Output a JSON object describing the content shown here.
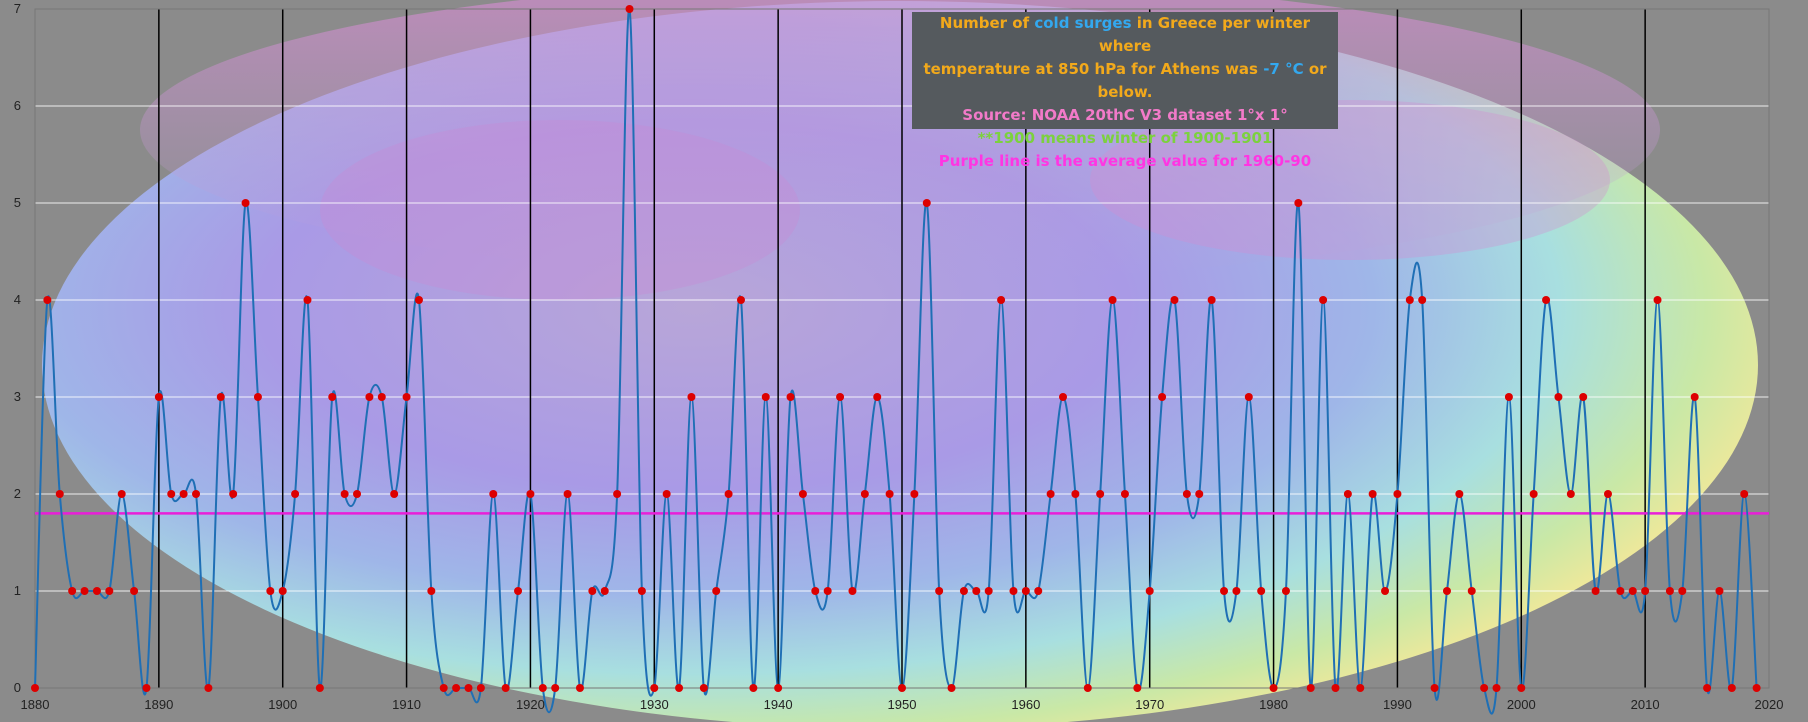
{
  "colors": {
    "series": "#1f6fb5",
    "marker": "#dd0000",
    "average": "#e81fd8",
    "title_orange": "#f2a91b",
    "title_blue": "#33a8ef",
    "source_pink": "#f27ac9",
    "note_green": "#7cd13e",
    "average_note": "#ff35e3"
  },
  "legend": {
    "title1": [
      "Number of ",
      "cold surges",
      " in Greece per winter where"
    ],
    "title2": [
      "temperature at 850 hPa for Athens was ",
      "-7 °C",
      " or below."
    ],
    "source": "Source: NOAA 20thC V3 dataset 1°x 1°",
    "note": "**1900 means winter of 1900-1901",
    "average_note": "Purple line is the average value for 1960-90"
  },
  "chart_data": {
    "type": "line",
    "x_ticks": [
      "1880",
      "1890",
      "1900",
      "1910",
      "1920",
      "1930",
      "1940",
      "1950",
      "1960",
      "1970",
      "1980",
      "1990",
      "2000",
      "2010",
      "2020"
    ],
    "y_ticks": [
      "0",
      "1",
      "2",
      "3",
      "4",
      "5",
      "6",
      "7"
    ],
    "xlim": [
      1880,
      2020
    ],
    "ylim": [
      0,
      7
    ],
    "grid": true,
    "average_1960_90": 1.8,
    "x": [
      1880,
      1881,
      1882,
      1883,
      1884,
      1885,
      1886,
      1887,
      1888,
      1889,
      1890,
      1891,
      1892,
      1893,
      1894,
      1895,
      1896,
      1897,
      1898,
      1899,
      1900,
      1901,
      1902,
      1903,
      1904,
      1905,
      1906,
      1907,
      1908,
      1909,
      1910,
      1911,
      1912,
      1913,
      1914,
      1915,
      1916,
      1917,
      1918,
      1919,
      1920,
      1921,
      1922,
      1923,
      1924,
      1925,
      1926,
      1927,
      1928,
      1929,
      1930,
      1931,
      1932,
      1933,
      1934,
      1935,
      1936,
      1937,
      1938,
      1939,
      1940,
      1941,
      1942,
      1943,
      1944,
      1945,
      1946,
      1947,
      1948,
      1949,
      1950,
      1951,
      1952,
      1953,
      1954,
      1955,
      1956,
      1957,
      1958,
      1959,
      1960,
      1961,
      1962,
      1963,
      1964,
      1965,
      1966,
      1967,
      1968,
      1969,
      1970,
      1971,
      1972,
      1973,
      1974,
      1975,
      1976,
      1977,
      1978,
      1979,
      1980,
      1981,
      1982,
      1983,
      1984,
      1985,
      1986,
      1987,
      1988,
      1989,
      1990,
      1991,
      1992,
      1993,
      1994,
      1995,
      1996,
      1997,
      1998,
      1999,
      2000,
      2001,
      2002,
      2003,
      2004,
      2005,
      2006,
      2007,
      2008,
      2009,
      2010,
      2011,
      2012,
      2013,
      2014,
      2015,
      2016,
      2017,
      2018,
      2019
    ],
    "y": [
      0,
      4,
      2,
      1,
      1,
      1,
      1,
      2,
      1,
      0,
      3,
      2,
      2,
      2,
      0,
      3,
      2,
      5,
      3,
      1,
      1,
      2,
      4,
      0,
      3,
      2,
      2,
      3,
      3,
      2,
      3,
      4,
      1,
      0,
      0,
      0,
      0,
      2,
      0,
      1,
      2,
      0,
      0,
      2,
      0,
      1,
      1,
      2,
      7,
      1,
      0,
      2,
      0,
      3,
      0,
      1,
      2,
      4,
      0,
      3,
      0,
      3,
      2,
      1,
      1,
      3,
      1,
      2,
      3,
      2,
      0,
      2,
      5,
      1,
      0,
      1,
      1,
      1,
      4,
      1,
      1,
      1,
      2,
      3,
      2,
      0,
      2,
      4,
      2,
      0,
      1,
      3,
      4,
      2,
      2,
      4,
      1,
      1,
      3,
      1,
      0,
      1,
      5,
      0,
      4,
      0,
      2,
      0,
      2,
      1,
      2,
      4,
      4,
      0,
      1,
      2,
      1,
      0,
      0,
      3,
      0,
      2,
      4,
      3,
      2,
      3,
      1,
      2,
      1,
      1,
      1,
      4,
      1,
      1,
      3,
      0,
      1,
      0,
      2,
      0
    ]
  }
}
